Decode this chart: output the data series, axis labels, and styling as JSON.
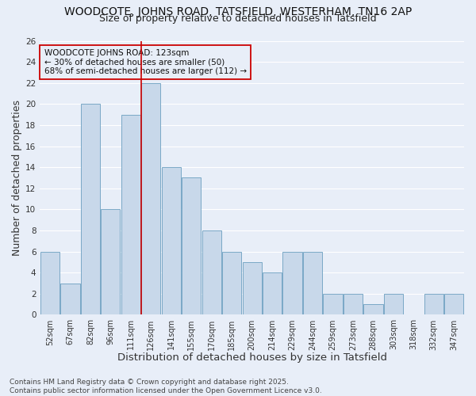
{
  "title1": "WOODCOTE, JOHNS ROAD, TATSFIELD, WESTERHAM, TN16 2AP",
  "title2": "Size of property relative to detached houses in Tatsfield",
  "xlabel": "Distribution of detached houses by size in Tatsfield",
  "ylabel": "Number of detached properties",
  "footer1": "Contains HM Land Registry data © Crown copyright and database right 2025.",
  "footer2": "Contains public sector information licensed under the Open Government Licence v3.0.",
  "annotation_line1": "WOODCOTE JOHNS ROAD: 123sqm",
  "annotation_line2": "← 30% of detached houses are smaller (50)",
  "annotation_line3": "68% of semi-detached houses are larger (112) →",
  "bar_color": "#c8d8ea",
  "bar_edge_color": "#6b9fc0",
  "vline_color": "#cc0000",
  "vline_x": 4.5,
  "categories": [
    "52sqm",
    "67sqm",
    "82sqm",
    "96sqm",
    "111sqm",
    "126sqm",
    "141sqm",
    "155sqm",
    "170sqm",
    "185sqm",
    "200sqm",
    "214sqm",
    "229sqm",
    "244sqm",
    "259sqm",
    "273sqm",
    "288sqm",
    "303sqm",
    "318sqm",
    "332sqm",
    "347sqm"
  ],
  "values": [
    6,
    3,
    20,
    10,
    19,
    22,
    14,
    13,
    8,
    6,
    5,
    4,
    6,
    6,
    2,
    2,
    1,
    2,
    0,
    2,
    2
  ],
  "ylim": [
    0,
    26
  ],
  "yticks": [
    0,
    2,
    4,
    6,
    8,
    10,
    12,
    14,
    16,
    18,
    20,
    22,
    24,
    26
  ],
  "bg_color": "#e8eef8",
  "grid_color": "#ffffff",
  "title_fontsize": 10,
  "subtitle_fontsize": 9,
  "axis_label_fontsize": 9,
  "tick_fontsize": 7,
  "annotation_fontsize": 7.5,
  "footer_fontsize": 6.5
}
